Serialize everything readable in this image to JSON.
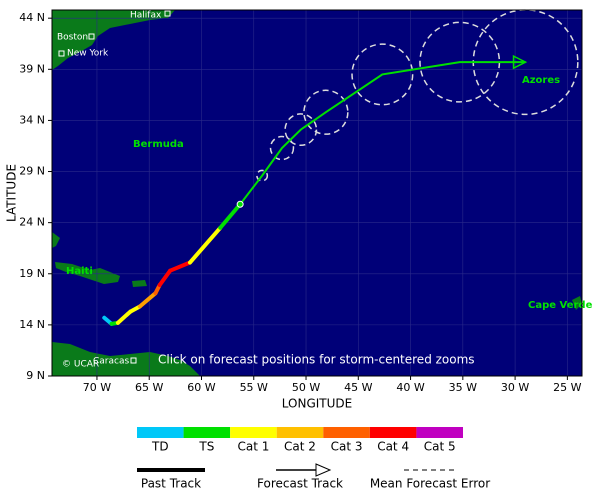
{
  "map": {
    "xlabel": "LONGITUDE",
    "ylabel": "LATITUDE",
    "xlim": [
      -74.3,
      -23.6
    ],
    "ylim": [
      9,
      44.8
    ],
    "xticks": [
      {
        "value": -70,
        "label": "70 W"
      },
      {
        "value": -65,
        "label": "65 W"
      },
      {
        "value": -60,
        "label": "60 W"
      },
      {
        "value": -55,
        "label": "55 W"
      },
      {
        "value": -50,
        "label": "50 W"
      },
      {
        "value": -45,
        "label": "45 W"
      },
      {
        "value": -40,
        "label": "40 W"
      },
      {
        "value": -35,
        "label": "35 W"
      },
      {
        "value": -30,
        "label": "30 W"
      },
      {
        "value": -25,
        "label": "25 W"
      }
    ],
    "yticks": [
      {
        "value": 9,
        "label": "9 N"
      },
      {
        "value": 14,
        "label": "14 N"
      },
      {
        "value": 19,
        "label": "19 N"
      },
      {
        "value": 24,
        "label": "24 N"
      },
      {
        "value": 29,
        "label": "29 N"
      },
      {
        "value": 34,
        "label": "34 N"
      },
      {
        "value": 39,
        "label": "39 N"
      },
      {
        "value": 44,
        "label": "44 N"
      }
    ],
    "places": [
      "Halifax",
      "Boston",
      "New York",
      "Bermuda",
      "Haiti",
      "Azores",
      "Cape Verde",
      "Caracas"
    ],
    "credit": "© UCAR",
    "note": "Click on forecast positions for storm-centered zooms",
    "past_track": {
      "lon": [
        -69.3,
        -68.6,
        -68.0,
        -66.8,
        -65.9,
        -64.4,
        -64.0,
        -63.0,
        -61.1,
        -58.2,
        -56.3
      ],
      "lat": [
        14.7,
        14.1,
        14.2,
        15.3,
        15.8,
        17.1,
        17.9,
        19.3,
        20.1,
        23.5,
        25.8
      ],
      "colors": [
        "#00c8f8",
        "#00c8f8",
        "#00e000",
        "#ffff00",
        "#ffff00",
        "#ffa000",
        "#ff6000",
        "#ff0000",
        "#ff0000",
        "#ffff00",
        "#00e000"
      ]
    },
    "forecast_track": {
      "color": "#00e000",
      "lon": [
        -56.3,
        -54.2,
        -52.3,
        -50.5,
        -48.1,
        -42.7,
        -35.3,
        -29.0
      ],
      "lat": [
        25.8,
        28.6,
        31.3,
        33.1,
        34.8,
        38.5,
        39.7,
        39.7
      ],
      "error_radius": [
        0,
        0.5,
        1.1,
        1.5,
        2.1,
        2.9,
        3.8,
        5.0
      ]
    },
    "legend": {
      "categories": [
        {
          "name": "TD",
          "color": "#00c8f8"
        },
        {
          "name": "TS",
          "color": "#00e000"
        },
        {
          "name": "Cat 1",
          "color": "#ffff00"
        },
        {
          "name": "Cat 2",
          "color": "#ffc000"
        },
        {
          "name": "Cat 3",
          "color": "#ff6000"
        },
        {
          "name": "Cat 4",
          "color": "#ff0000"
        },
        {
          "name": "Cat 5",
          "color": "#c000c0"
        }
      ],
      "lines": [
        "Past Track",
        "Forecast Track",
        "Mean Forecast Error"
      ]
    }
  }
}
